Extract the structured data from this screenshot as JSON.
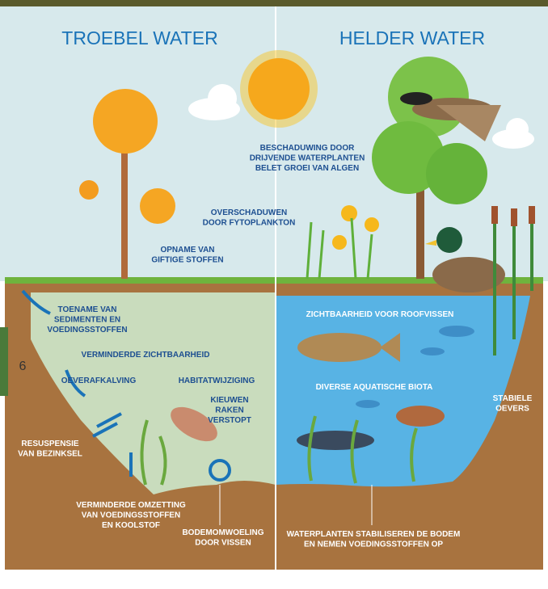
{
  "titles": {
    "left": "TROEBEL WATER",
    "right": "HELDER WATER"
  },
  "page_number": "6",
  "labels": [
    {
      "lines": [
        "BESCHADUWING DOOR",
        "DRIJVENDE WATERPLANTEN",
        "BELET GROEI VAN ALGEN"
      ]
    },
    {
      "lines": [
        "OVERSCHADUWEN",
        "DOOR FYTOPLANKTON"
      ]
    },
    {
      "lines": [
        "OPNAME VAN",
        "GIFTIGE STOFFEN"
      ]
    },
    {
      "lines": [
        "TOENAME VAN",
        "SEDIMENTEN EN",
        "VOEDINGSSTOFFEN"
      ]
    },
    {
      "lines": [
        "VERMINDERDE ZICHTBAARHEID"
      ]
    },
    {
      "lines": [
        "OEVERAFKALVING"
      ]
    },
    {
      "lines": [
        "HABITATWIJZIGING"
      ]
    },
    {
      "lines": [
        "KIEUWEN",
        "RAKEN",
        "VERSTOPT"
      ]
    },
    {
      "lines": [
        "RESUSPENSIE",
        "VAN BEZINKSEL"
      ]
    },
    {
      "lines": [
        "VERMINDERDE OMZETTING",
        "VAN VOEDINGSSTOFFEN",
        "EN KOOLSTOF"
      ]
    },
    {
      "lines": [
        "BODEMOMWOELING",
        "DOOR VISSEN"
      ]
    },
    {
      "lines": [
        "ZICHTBAARHEID VOOR ROOFVISSEN"
      ]
    },
    {
      "lines": [
        "DIVERSE AQUATISCHE BIOTA"
      ]
    },
    {
      "lines": [
        "STABIELE",
        "OEVERS"
      ]
    },
    {
      "lines": [
        "WATERPLANTEN STABILISEREN DE BODEM",
        "EN NEMEN VOEDINGSSTOFFEN OP"
      ]
    }
  ]
}
